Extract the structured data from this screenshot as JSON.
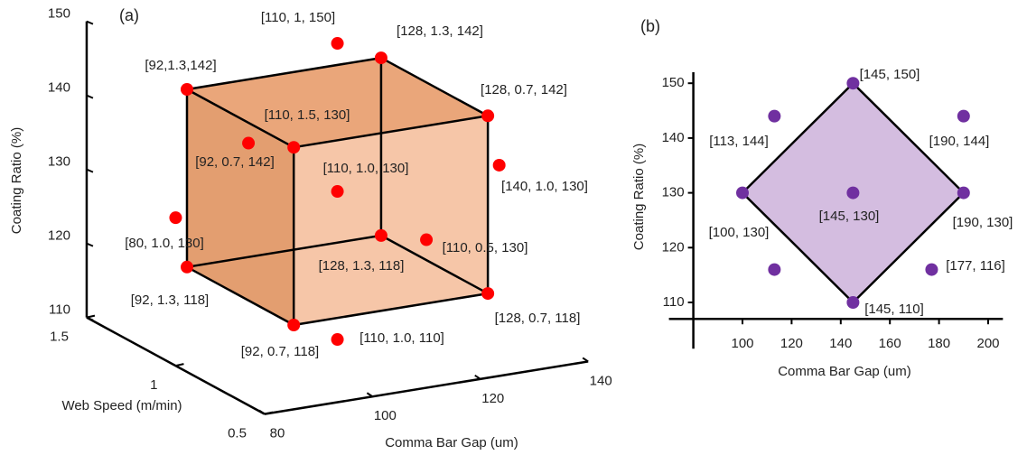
{
  "chart_data": [
    {
      "type": "scatter3d",
      "panel_label": "(a)",
      "x_label": "Comma Bar Gap (um)",
      "y_label": "Web Speed (m/min)",
      "z_label": "Coating Ratio (%)",
      "xlim": [
        80,
        140
      ],
      "xticks": [
        80,
        100,
        120,
        140
      ],
      "ylim": [
        0.5,
        1.5
      ],
      "yticks": [
        1.5,
        1,
        0.5
      ],
      "zlim": [
        110,
        150
      ],
      "zticks": [
        110,
        120,
        130,
        140,
        150
      ],
      "color": "#ff0000",
      "x": [
        110,
        128,
        92,
        128,
        110,
        92,
        110,
        140,
        80,
        128,
        110,
        92,
        128,
        92,
        110
      ],
      "y": [
        1,
        1.3,
        1.3,
        0.7,
        1.5,
        0.7,
        1.0,
        1.0,
        1.0,
        1.3,
        0.5,
        1.3,
        0.7,
        0.7,
        1.0
      ],
      "z": [
        150,
        142,
        142,
        142,
        130,
        142,
        130,
        130,
        130,
        118,
        130,
        118,
        118,
        118,
        110
      ],
      "value_labels": [
        "[110, 1, 150]",
        "[128, 1.3, 142]",
        "[92,1.3,142]",
        "[128, 0.7, 142]",
        "[110, 1.5, 130]",
        "[92, 0.7, 142]",
        "[110, 1.0, 130]",
        "[140, 1.0, 130]",
        "[80, 1.0, 130]",
        "[128, 1.3, 118]",
        "[110, 0.5, 130]",
        "[92, 1.3, 118]",
        "[128, 0.7, 118]",
        "[92, 0.7, 118]",
        "[110, 1.0, 110]"
      ]
    },
    {
      "type": "scatter",
      "panel_label": "(b)",
      "x_label": "Comma Bar Gap (um)",
      "y_label": "Coating Ratio (%)",
      "xlim": [
        80,
        206
      ],
      "xticks": [
        100,
        120,
        140,
        160,
        180,
        200
      ],
      "ylim": [
        107,
        152
      ],
      "yticks": [
        110,
        120,
        130,
        140,
        150
      ],
      "color": "#7030a0",
      "fill": "#d4bde0",
      "x": [
        145,
        113,
        190,
        100,
        145,
        190,
        113,
        177,
        145
      ],
      "y": [
        150,
        144,
        144,
        130,
        130,
        130,
        116,
        116,
        110
      ],
      "value_labels": [
        "[145, 150]",
        "[113, 144]",
        "[190, 144]",
        "[100, 130]",
        "[145, 130]",
        "[190, 130]",
        null,
        "[177, 116]",
        "[145, 110]"
      ]
    }
  ]
}
